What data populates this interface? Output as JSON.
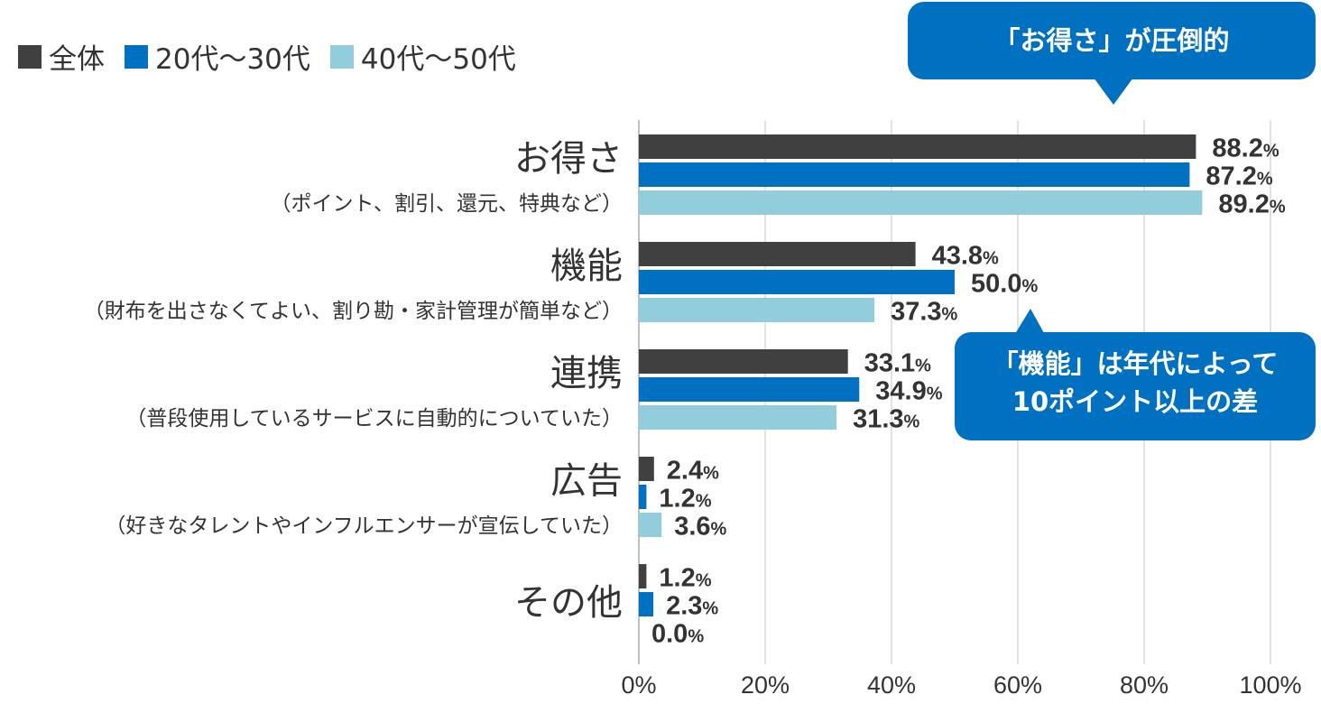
{
  "legend": [
    {
      "label": "全体",
      "color": "#404040"
    },
    {
      "label": "20代〜30代",
      "color": "#0070c0"
    },
    {
      "label": "40代〜50代",
      "color": "#92cddc"
    }
  ],
  "callouts": {
    "top": "「お得さ」が圧倒的",
    "middle_line1": "「機能」は年代によって",
    "middle_line2": "10ポイント以上の差"
  },
  "chart_data": {
    "type": "bar",
    "orientation": "horizontal",
    "categories": [
      "お得さ",
      "機能",
      "連携",
      "広告",
      "その他"
    ],
    "category_notes": [
      "（ポイント、割引、還元、特典など）",
      "（財布を出さなくてよい、割り勘・家計管理が簡単など）",
      "（普段使用しているサービスに自動的についていた）",
      "（好きなタレントやインフルエンサーが宣伝していた）",
      ""
    ],
    "series": [
      {
        "name": "全体",
        "color": "#404040",
        "values": [
          88.2,
          43.8,
          33.1,
          2.4,
          1.2
        ]
      },
      {
        "name": "20代〜30代",
        "color": "#0070c0",
        "values": [
          87.2,
          50.0,
          34.9,
          1.2,
          2.3
        ]
      },
      {
        "name": "40代〜50代",
        "color": "#92cddc",
        "values": [
          89.2,
          37.3,
          31.3,
          3.6,
          0.0
        ]
      }
    ],
    "value_suffix": "%",
    "xlim": [
      0,
      100
    ],
    "xticks": [
      0,
      20,
      40,
      60,
      80,
      100
    ],
    "xtick_labels": [
      "0%",
      "20%",
      "40%",
      "60%",
      "80%",
      "100%"
    ],
    "grid": true,
    "legend_position": "top-left"
  }
}
